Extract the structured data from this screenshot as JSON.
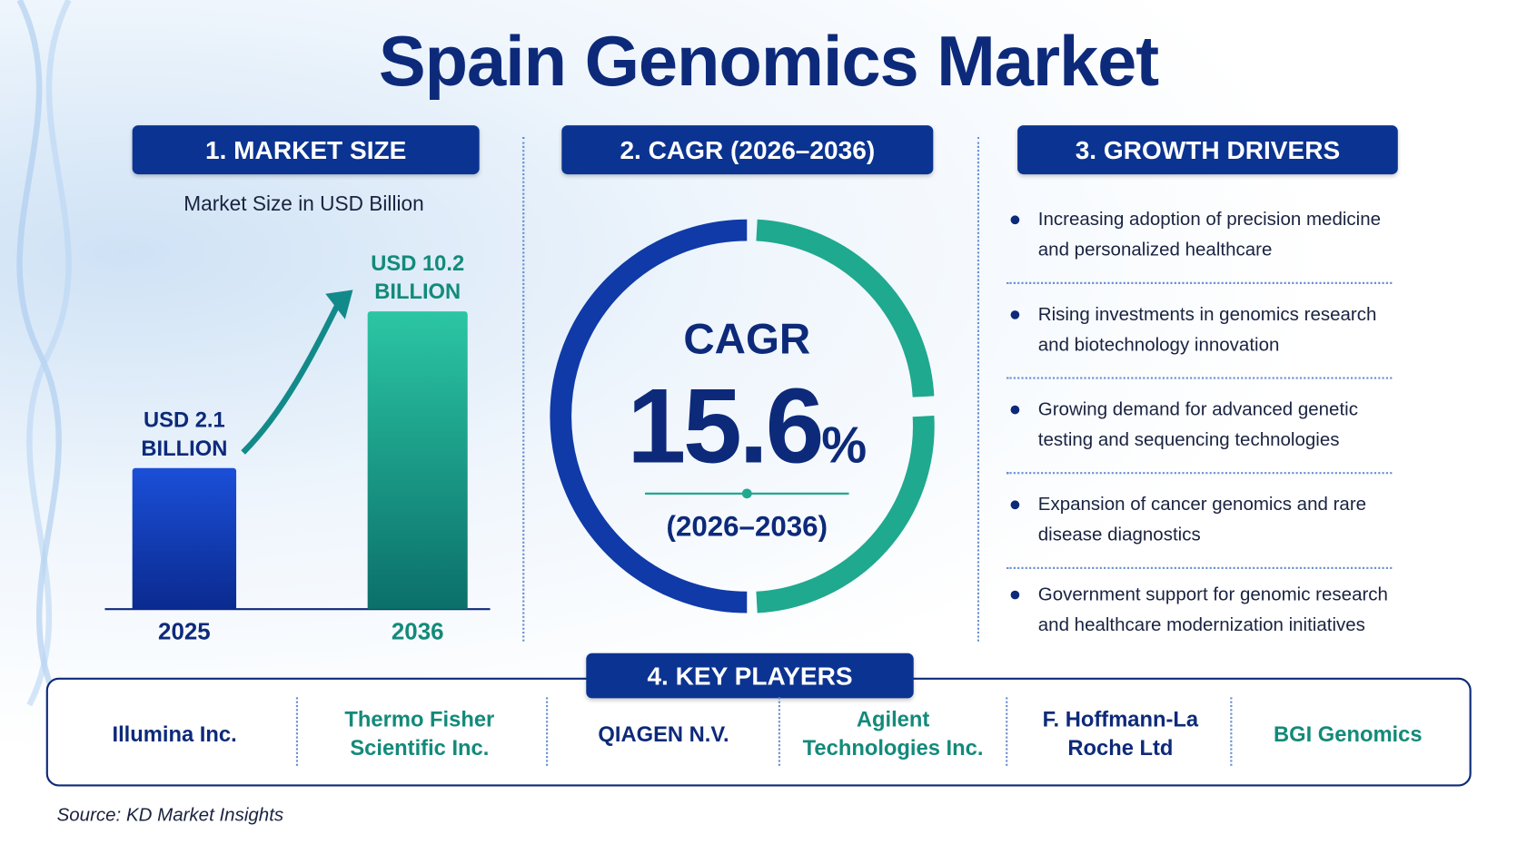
{
  "title": "Spain Genomics Market",
  "market_size": {
    "header": "1. MARKET SIZE",
    "subtitle": "Market Size in USD Billion",
    "bars": [
      {
        "year": "2025",
        "value": 2.1,
        "label": "USD 2.1 BILLION"
      },
      {
        "year": "2036",
        "value": 10.2,
        "label": "USD 10.2 BILLION"
      }
    ]
  },
  "cagr": {
    "header": "2. CAGR (2026–2036)",
    "label": "CAGR",
    "value": "15.6",
    "unit": "%",
    "period": "(2026–2036)"
  },
  "drivers": {
    "header": "3. GROWTH DRIVERS",
    "items": [
      "Increasing adoption of precision medicine and personalized healthcare",
      "Rising investments in genomics research and biotechnology innovation",
      "Growing demand for advanced genetic testing and sequencing technologies",
      "Expansion of cancer genomics and rare disease diagnostics",
      "Government support for genomic research and healthcare modernization initiatives"
    ]
  },
  "key_players": {
    "header": "4. KEY PLAYERS",
    "items": [
      "Illumina Inc.",
      "Thermo Fisher Scientific Inc.",
      "QIAGEN N.V.",
      "Agilent Technologies Inc.",
      "F. Hoffmann-La Roche Ltd",
      "BGI Genomics"
    ]
  },
  "source": "Source: KD Market Insights"
}
